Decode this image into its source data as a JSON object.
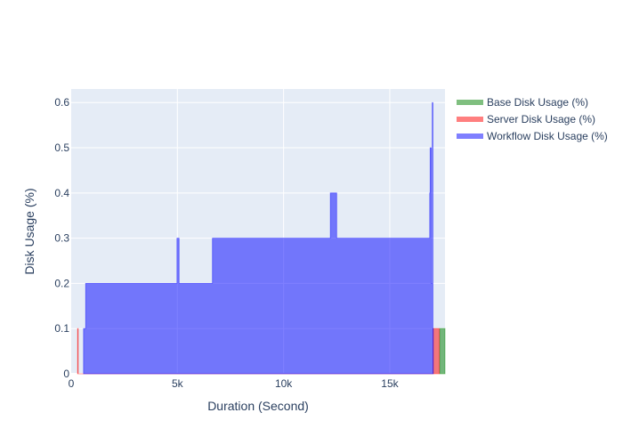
{
  "chart_data": {
    "type": "area",
    "title": "",
    "xlabel": "Duration (Second)",
    "ylabel": "Disk Usage (%)",
    "xlim": [
      0,
      17600
    ],
    "ylim": [
      0,
      0.63
    ],
    "x_ticks": [
      {
        "value": 0,
        "label": "0"
      },
      {
        "value": 5000,
        "label": "5k"
      },
      {
        "value": 10000,
        "label": "10k"
      },
      {
        "value": 15000,
        "label": "15k"
      }
    ],
    "y_ticks": [
      {
        "value": 0,
        "label": "0"
      },
      {
        "value": 0.1,
        "label": "0.1"
      },
      {
        "value": 0.2,
        "label": "0.2"
      },
      {
        "value": 0.3,
        "label": "0.3"
      },
      {
        "value": 0.4,
        "label": "0.4"
      },
      {
        "value": 0.5,
        "label": "0.5"
      },
      {
        "value": 0.6,
        "label": "0.6"
      }
    ],
    "grid": true,
    "legend_position": "top-right",
    "series": [
      {
        "name": "Base Disk Usage (%)",
        "color": "#008000",
        "points": [
          [
            17350,
            0
          ],
          [
            17350,
            0.1
          ],
          [
            17600,
            0.1
          ],
          [
            17600,
            0
          ]
        ]
      },
      {
        "name": "Server Disk Usage (%)",
        "color": "#ff0000",
        "points": [
          [
            300,
            0
          ],
          [
            300,
            0.1
          ],
          [
            330,
            0.1
          ],
          [
            330,
            0
          ],
          [
            17030,
            0
          ],
          [
            17030,
            0.1
          ],
          [
            17330,
            0.1
          ],
          [
            17330,
            0
          ]
        ]
      },
      {
        "name": "Workflow Disk Usage (%)",
        "color": "#0000ff",
        "points": [
          [
            580,
            0
          ],
          [
            580,
            0.1
          ],
          [
            680,
            0.1
          ],
          [
            680,
            0.2
          ],
          [
            4980,
            0.2
          ],
          [
            4980,
            0.3
          ],
          [
            5080,
            0.3
          ],
          [
            5080,
            0.2
          ],
          [
            6650,
            0.2
          ],
          [
            6650,
            0.3
          ],
          [
            7150,
            0.3
          ],
          [
            7150,
            0.3
          ],
          [
            12200,
            0.3
          ],
          [
            12200,
            0.4
          ],
          [
            12500,
            0.4
          ],
          [
            12500,
            0.3
          ],
          [
            16880,
            0.3
          ],
          [
            16880,
            0.4
          ],
          [
            16900,
            0.4
          ],
          [
            16900,
            0.5
          ],
          [
            16950,
            0.5
          ],
          [
            16950,
            0.2
          ],
          [
            17000,
            0.2
          ],
          [
            17000,
            0.6
          ],
          [
            17030,
            0.6
          ],
          [
            17030,
            0.1
          ],
          [
            17050,
            0.1
          ],
          [
            17050,
            0
          ]
        ]
      }
    ]
  }
}
